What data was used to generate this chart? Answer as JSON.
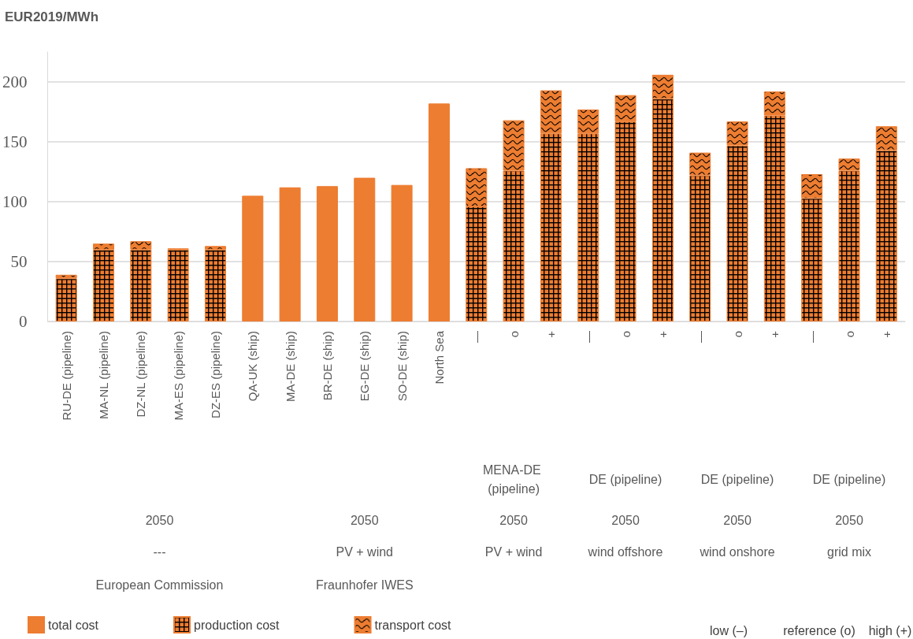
{
  "chart_data": {
    "type": "bar",
    "stacked": true,
    "ylabel": "EUR2019/MWh",
    "categories": [
      "RU-DE (pipeline)",
      "MA-NL (pipeline)",
      "DZ-NL (pipeline)",
      "MA-ES (pipeline)",
      "DZ-ES (pipeline)",
      "QA-UK (ship)",
      "MA-DE (ship)",
      "BR-DE (ship)",
      "EG-DE (ship)",
      "SO-DE (ship)",
      "North Sea",
      "—",
      "o",
      "+",
      "—",
      "o",
      "+",
      "—",
      "o",
      "+",
      "—",
      "o",
      "+"
    ],
    "series": [
      {
        "name": "total cost",
        "color": "#ed7d31",
        "values": [
          null,
          null,
          null,
          null,
          null,
          105,
          112,
          113,
          120,
          114,
          182,
          null,
          null,
          null,
          null,
          null,
          null,
          null,
          null,
          null,
          null,
          null,
          null
        ]
      },
      {
        "name": "production cost",
        "color": "#ed7d31",
        "values": [
          36,
          60,
          60,
          60,
          60,
          null,
          null,
          null,
          null,
          null,
          null,
          96,
          126,
          157,
          157,
          167,
          186,
          122,
          147,
          172,
          103,
          126,
          143
        ]
      },
      {
        "name": "transport cost",
        "color": "#ed7d31",
        "values": [
          3,
          5,
          7,
          1,
          3,
          null,
          null,
          null,
          null,
          null,
          null,
          32,
          42,
          36,
          20,
          22,
          20,
          19,
          20,
          20,
          20,
          10,
          20
        ]
      }
    ],
    "ylim": [
      0,
      225
    ],
    "yticks": [
      0,
      50,
      100,
      150,
      200
    ],
    "grid": "y",
    "legend": "bottom",
    "annotations": [
      "MENA-DE (pipeline)",
      "DE (pipeline)",
      "DE (pipeline)",
      "DE (pipeline)",
      "2050",
      "2050",
      "2050",
      "2050",
      "2050",
      "2050",
      "---",
      "PV + wind",
      "PV + wind",
      "wind offshore",
      "wind onshore",
      "grid mix",
      "European Commission",
      "Fraunhofer IWES",
      "low (–)",
      "reference (o)",
      "high (+)"
    ]
  }
}
